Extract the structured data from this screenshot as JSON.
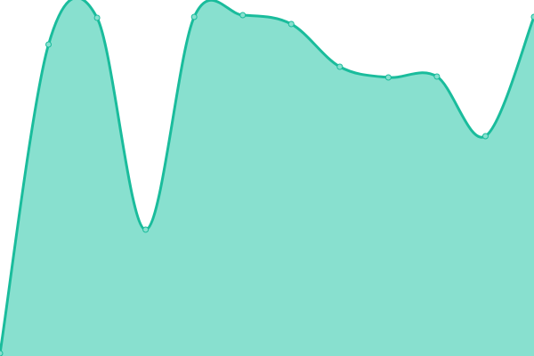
{
  "chart_data": {
    "type": "area",
    "title": "",
    "xlabel": "",
    "ylabel": "",
    "x": [
      0,
      1,
      2,
      3,
      4,
      5,
      6,
      7,
      8,
      9,
      10,
      11
    ],
    "values": [
      3,
      350,
      380,
      142,
      381,
      383,
      373,
      325,
      313,
      314,
      247,
      381
    ],
    "ylim": [
      0,
      400
    ],
    "grid": false,
    "axes_visible": false,
    "legend": "none",
    "colors": {
      "line": "#1abc9c",
      "fill": "#88e0cf",
      "point_fill": "#88e0cf"
    }
  }
}
